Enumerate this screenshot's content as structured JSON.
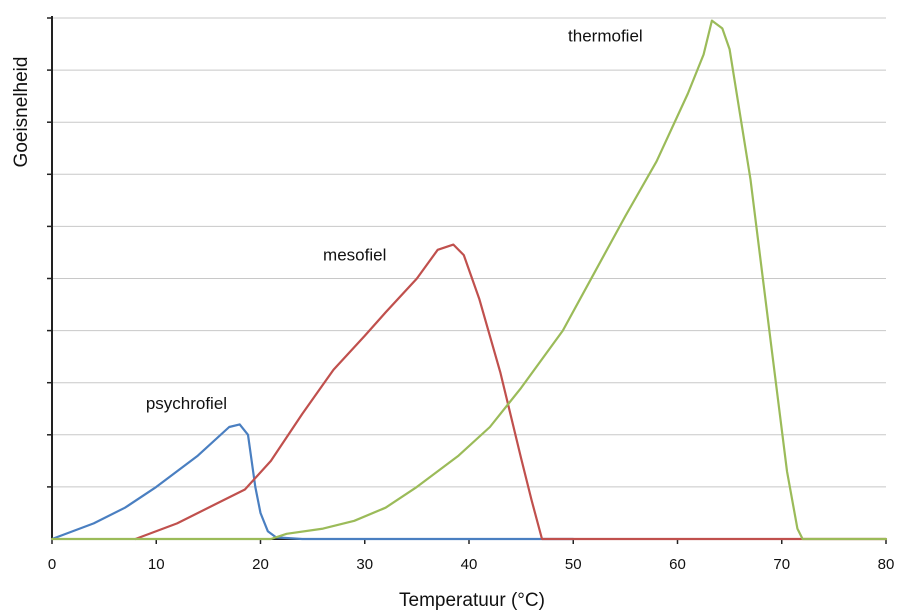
{
  "chart_data": {
    "type": "line",
    "xlabel": "Temperatuur (°C)",
    "ylabel": "Goeisnelheid",
    "xlim": [
      0,
      80
    ],
    "ylim": [
      0,
      10
    ],
    "x_ticks": [
      0,
      10,
      20,
      30,
      40,
      50,
      60,
      70,
      80
    ],
    "grid": "horizontal",
    "legend": "none",
    "series": [
      {
        "name": "psychrofiel",
        "color": "#4a7fc1",
        "label_at": [
          9,
          2.5
        ],
        "points": [
          [
            0,
            0
          ],
          [
            4,
            0.3
          ],
          [
            7,
            0.6
          ],
          [
            10,
            1.0
          ],
          [
            14,
            1.6
          ],
          [
            17,
            2.15
          ],
          [
            18,
            2.2
          ],
          [
            18.8,
            2.0
          ],
          [
            19.5,
            1.0
          ],
          [
            20,
            0.5
          ],
          [
            20.7,
            0.15
          ],
          [
            21.5,
            0.03
          ],
          [
            24,
            0
          ],
          [
            50,
            0
          ]
        ]
      },
      {
        "name": "mesofiel",
        "color": "#c0504d",
        "label_at": [
          26,
          5.35
        ],
        "points": [
          [
            8,
            0
          ],
          [
            12,
            0.3
          ],
          [
            16,
            0.7
          ],
          [
            18.5,
            0.95
          ],
          [
            21,
            1.5
          ],
          [
            24,
            2.4
          ],
          [
            27,
            3.25
          ],
          [
            30,
            3.9
          ],
          [
            32,
            4.35
          ],
          [
            35,
            5.0
          ],
          [
            37,
            5.55
          ],
          [
            38.5,
            5.65
          ],
          [
            39.5,
            5.45
          ],
          [
            41,
            4.6
          ],
          [
            43,
            3.2
          ],
          [
            45,
            1.55
          ],
          [
            46,
            0.75
          ],
          [
            47,
            0
          ],
          [
            80,
            0
          ]
        ]
      },
      {
        "name": "thermofiel",
        "color": "#9bbb59",
        "label_at": [
          49.5,
          9.55
        ],
        "points": [
          [
            0,
            0
          ],
          [
            21,
            0
          ],
          [
            22.5,
            0.1
          ],
          [
            26,
            0.2
          ],
          [
            29,
            0.35
          ],
          [
            32,
            0.6
          ],
          [
            35,
            1.0
          ],
          [
            39,
            1.6
          ],
          [
            42,
            2.15
          ],
          [
            45,
            2.9
          ],
          [
            49,
            4.0
          ],
          [
            52,
            5.1
          ],
          [
            55,
            6.2
          ],
          [
            58,
            7.25
          ],
          [
            61,
            8.55
          ],
          [
            62.5,
            9.3
          ],
          [
            63.3,
            9.95
          ],
          [
            64.3,
            9.8
          ],
          [
            65,
            9.4
          ],
          [
            67,
            6.9
          ],
          [
            69,
            3.7
          ],
          [
            70.5,
            1.3
          ],
          [
            71.5,
            0.2
          ],
          [
            72,
            0
          ],
          [
            80,
            0
          ]
        ]
      }
    ]
  }
}
